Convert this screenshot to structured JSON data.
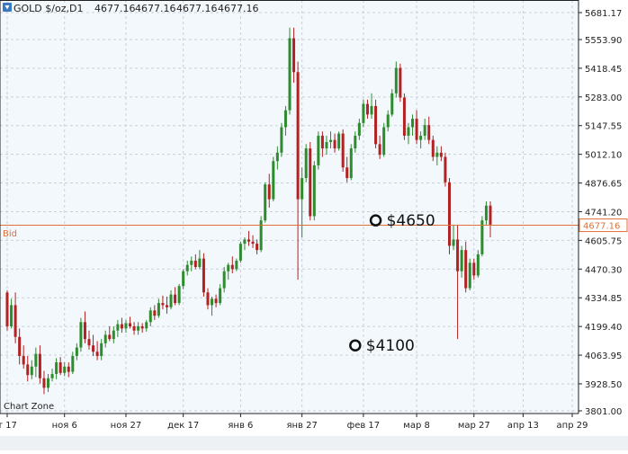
{
  "header": {
    "symbol": "GOLD $/oz,D1",
    "ohlc": [
      "4677.16",
      "4677.16",
      "4677.16",
      "4677.16"
    ]
  },
  "watermark": "Chart Zone",
  "bid": {
    "label": "Bid",
    "price": 4677.16,
    "price_text": "4677.16"
  },
  "annotations": [
    {
      "label": "$4650",
      "x": 90,
      "price": 4700
    },
    {
      "label": "$4100",
      "x": 85,
      "price": 4110
    }
  ],
  "colors": {
    "up": "#2e8b2e",
    "down": "#b22222",
    "bid": "#e0703a",
    "grid": "#c9d0d8",
    "plot_bg": "#f3f8fc",
    "axis": "#222222"
  },
  "chart_data": {
    "type": "candlestick",
    "title": "GOLD $/oz,D1",
    "y_ticks": [
      5681.17,
      5553.9,
      5418.45,
      5283.0,
      5147.55,
      5012.1,
      4876.65,
      4741.2,
      4605.75,
      4470.3,
      4334.85,
      4199.4,
      4063.95,
      3928.5,
      3801.0
    ],
    "y_tick_labels": [
      "5681.17",
      "5553.90",
      "5418.45",
      "5283.00",
      "5147.55",
      "5012.10",
      "4876.65",
      "4741.20",
      "4605.75",
      "4470.30",
      "4334.85",
      "4199.40",
      "4063.95",
      "3928.50",
      "3801.00"
    ],
    "x_ticks": [
      {
        "label": "т 17",
        "x": 0
      },
      {
        "label": "ноя 6",
        "x": 14
      },
      {
        "label": "ноя 27",
        "x": 29
      },
      {
        "label": "дек 17",
        "x": 43
      },
      {
        "label": "янв 6",
        "x": 57
      },
      {
        "label": "янв 27",
        "x": 72
      },
      {
        "label": "фев 17",
        "x": 87
      },
      {
        "label": "мар 8",
        "x": 100
      },
      {
        "label": "мар 27",
        "x": 114
      },
      {
        "label": "апр 13",
        "x": 126
      },
      {
        "label": "апр 29",
        "x": 138
      }
    ],
    "ylim": [
      3801.0,
      5720.0
    ],
    "xlim": [
      -1.4,
      145
    ],
    "grid": true,
    "candles": [
      [
        4360,
        4370,
        4180,
        4200
      ],
      [
        4200,
        4330,
        4190,
        4300
      ],
      [
        4300,
        4360,
        4120,
        4150
      ],
      [
        4150,
        4190,
        4020,
        4060
      ],
      [
        4060,
        4110,
        4000,
        4020
      ],
      [
        4020,
        4060,
        3940,
        3970
      ],
      [
        3970,
        4040,
        3950,
        4010
      ],
      [
        4010,
        4100,
        3960,
        4070
      ],
      [
        4070,
        4110,
        3930,
        3955
      ],
      [
        3955,
        3990,
        3880,
        3910
      ],
      [
        3910,
        3975,
        3890,
        3955
      ],
      [
        3955,
        4000,
        3940,
        3975
      ],
      [
        3975,
        4050,
        3950,
        4030
      ],
      [
        4030,
        4055,
        3970,
        3980
      ],
      [
        3980,
        4030,
        3965,
        4010
      ],
      [
        4010,
        4030,
        3960,
        3985
      ],
      [
        3985,
        4080,
        3975,
        4060
      ],
      [
        4060,
        4120,
        4040,
        4100
      ],
      [
        4100,
        4240,
        4080,
        4220
      ],
      [
        4220,
        4270,
        4120,
        4140
      ],
      [
        4140,
        4180,
        4090,
        4110
      ],
      [
        4110,
        4160,
        4060,
        4080
      ],
      [
        4080,
        4130,
        4040,
        4060
      ],
      [
        4060,
        4140,
        4040,
        4120
      ],
      [
        4120,
        4180,
        4100,
        4160
      ],
      [
        4160,
        4200,
        4130,
        4140
      ],
      [
        4140,
        4200,
        4120,
        4180
      ],
      [
        4180,
        4230,
        4150,
        4210
      ],
      [
        4210,
        4240,
        4170,
        4190
      ],
      [
        4190,
        4230,
        4170,
        4215
      ],
      [
        4215,
        4245,
        4190,
        4200
      ],
      [
        4200,
        4220,
        4160,
        4180
      ],
      [
        4180,
        4220,
        4160,
        4200
      ],
      [
        4200,
        4215,
        4170,
        4190
      ],
      [
        4190,
        4230,
        4175,
        4220
      ],
      [
        4220,
        4290,
        4200,
        4275
      ],
      [
        4275,
        4300,
        4230,
        4250
      ],
      [
        4250,
        4330,
        4240,
        4310
      ],
      [
        4310,
        4345,
        4280,
        4300
      ],
      [
        4300,
        4340,
        4260,
        4290
      ],
      [
        4290,
        4370,
        4280,
        4350
      ],
      [
        4350,
        4385,
        4300,
        4310
      ],
      [
        4310,
        4400,
        4300,
        4390
      ],
      [
        4390,
        4470,
        4375,
        4460
      ],
      [
        4460,
        4510,
        4440,
        4490
      ],
      [
        4490,
        4530,
        4460,
        4510
      ],
      [
        4510,
        4540,
        4470,
        4480
      ],
      [
        4480,
        4560,
        4470,
        4520
      ],
      [
        4520,
        4545,
        4340,
        4360
      ],
      [
        4360,
        4380,
        4280,
        4300
      ],
      [
        4300,
        4340,
        4250,
        4330
      ],
      [
        4330,
        4350,
        4290,
        4310
      ],
      [
        4310,
        4400,
        4300,
        4380
      ],
      [
        4380,
        4480,
        4360,
        4460
      ],
      [
        4460,
        4500,
        4420,
        4490
      ],
      [
        4490,
        4530,
        4450,
        4470
      ],
      [
        4470,
        4520,
        4460,
        4510
      ],
      [
        4510,
        4600,
        4500,
        4590
      ],
      [
        4590,
        4620,
        4560,
        4610
      ],
      [
        4610,
        4650,
        4580,
        4600
      ],
      [
        4600,
        4630,
        4570,
        4590
      ],
      [
        4590,
        4610,
        4540,
        4560
      ],
      [
        4560,
        4720,
        4550,
        4700
      ],
      [
        4700,
        4880,
        4690,
        4870
      ],
      [
        4870,
        4920,
        4760,
        4800
      ],
      [
        4800,
        5000,
        4790,
        4980
      ],
      [
        4980,
        5050,
        4940,
        5020
      ],
      [
        5020,
        5160,
        5000,
        5140
      ],
      [
        5140,
        5240,
        5100,
        5220
      ],
      [
        5220,
        5610,
        5200,
        5560
      ],
      [
        5560,
        5610,
        5350,
        5400
      ],
      [
        5400,
        5450,
        4420,
        4800
      ],
      [
        4800,
        4950,
        4620,
        4900
      ],
      [
        4900,
        5060,
        4880,
        5040
      ],
      [
        5040,
        5070,
        4700,
        4720
      ],
      [
        4720,
        4980,
        4700,
        4960
      ],
      [
        4960,
        5120,
        4940,
        5100
      ],
      [
        5100,
        5120,
        5000,
        5040
      ],
      [
        5040,
        5100,
        5010,
        5070
      ],
      [
        5070,
        5120,
        5040,
        5080
      ],
      [
        5080,
        5110,
        5020,
        5040
      ],
      [
        5040,
        5120,
        5030,
        5110
      ],
      [
        5110,
        5130,
        4930,
        4950
      ],
      [
        4950,
        5000,
        4880,
        4900
      ],
      [
        4900,
        5060,
        4890,
        5040
      ],
      [
        5040,
        5120,
        5020,
        5100
      ],
      [
        5100,
        5180,
        5080,
        5160
      ],
      [
        5160,
        5270,
        5140,
        5250
      ],
      [
        5250,
        5270,
        5180,
        5200
      ],
      [
        5200,
        5300,
        5180,
        5240
      ],
      [
        5240,
        5270,
        5040,
        5060
      ],
      [
        5060,
        5100,
        4990,
        5010
      ],
      [
        5010,
        5160,
        5000,
        5140
      ],
      [
        5140,
        5220,
        5120,
        5200
      ],
      [
        5200,
        5320,
        5190,
        5300
      ],
      [
        5300,
        5450,
        5280,
        5420
      ],
      [
        5420,
        5440,
        5260,
        5280
      ],
      [
        5280,
        5300,
        5080,
        5100
      ],
      [
        5100,
        5160,
        5060,
        5140
      ],
      [
        5140,
        5200,
        5100,
        5180
      ],
      [
        5180,
        5220,
        5060,
        5080
      ],
      [
        5080,
        5120,
        5040,
        5100
      ],
      [
        5100,
        5180,
        5080,
        5150
      ],
      [
        5150,
        5190,
        5060,
        5080
      ],
      [
        5080,
        5100,
        4980,
        5000
      ],
      [
        5000,
        5050,
        4960,
        5020
      ],
      [
        5020,
        5050,
        4980,
        5000
      ],
      [
        5000,
        5020,
        4860,
        4880
      ],
      [
        4880,
        4900,
        4540,
        4580
      ],
      [
        4580,
        4680,
        4560,
        4610
      ],
      [
        4610,
        4680,
        4140,
        4460
      ],
      [
        4460,
        4580,
        4430,
        4560
      ],
      [
        4560,
        4600,
        4360,
        4380
      ],
      [
        4380,
        4520,
        4370,
        4500
      ],
      [
        4500,
        4520,
        4420,
        4440
      ],
      [
        4440,
        4560,
        4430,
        4540
      ],
      [
        4540,
        4720,
        4530,
        4700
      ],
      [
        4700,
        4790,
        4680,
        4770
      ],
      [
        4770,
        4790,
        4620,
        4680
      ]
    ]
  }
}
